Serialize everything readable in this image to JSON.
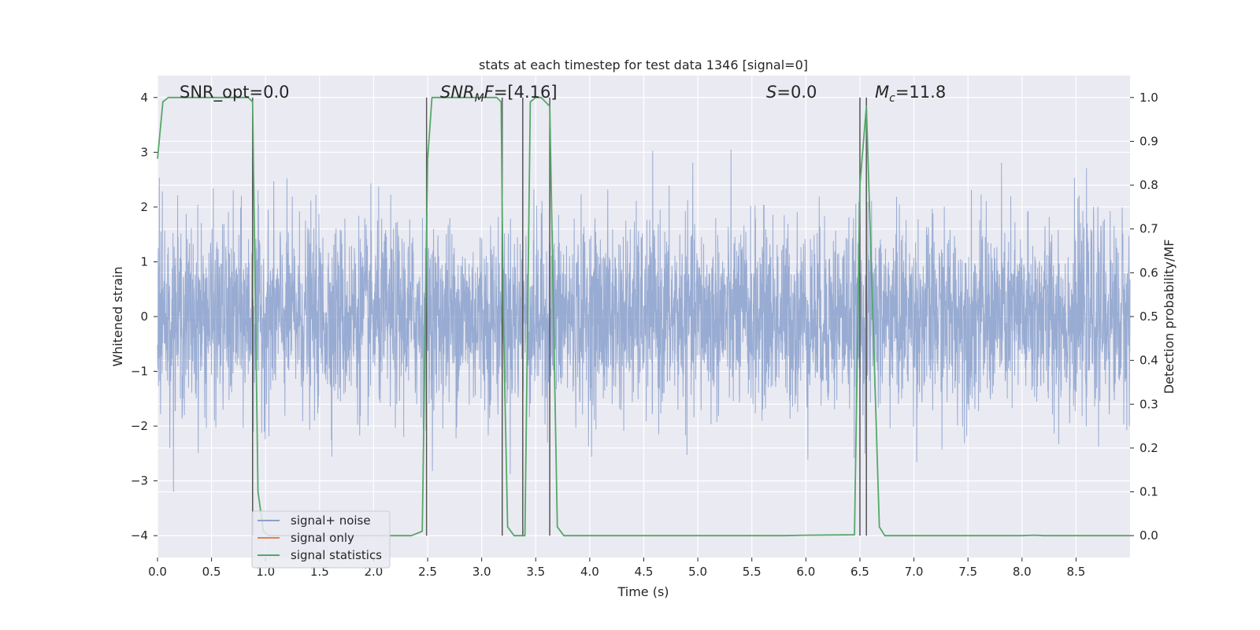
{
  "chart_data": {
    "type": "line",
    "title": "stats at each timestep for test data 1346 [signal=0]",
    "xlabel": "Time (s)",
    "ylabel_left": "Whitened strain",
    "ylabel_right": "Detection probability/MF",
    "xlim": [
      0.0,
      9.0
    ],
    "ylim_left": [
      -4.4,
      4.4
    ],
    "ylim_right": [
      -0.05,
      1.05
    ],
    "xticks": [
      "0.0",
      "0.5",
      "1.0",
      "1.5",
      "2.0",
      "2.5",
      "3.0",
      "3.5",
      "4.0",
      "4.5",
      "5.0",
      "5.5",
      "6.0",
      "6.5",
      "7.0",
      "7.5",
      "8.0",
      "8.5"
    ],
    "yticks_left": [
      "4",
      "3",
      "2",
      "1",
      "0",
      "−1",
      "−2",
      "−3",
      "−4"
    ],
    "yticks_right": [
      "1.0",
      "0.9",
      "0.8",
      "0.7",
      "0.6",
      "0.5",
      "0.4",
      "0.3",
      "0.2",
      "0.1",
      "0.0"
    ],
    "annotations": [
      {
        "text": "SNR_opt=0.0",
        "x": 0.2
      },
      {
        "text": "SNR_MF=[4.16]",
        "x": 2.6
      },
      {
        "text": "S=0.0",
        "x": 5.6
      },
      {
        "text": "M_c=11.8",
        "x": 6.6
      }
    ],
    "vertical_lines_x": [
      0.88,
      2.49,
      3.19,
      3.38,
      3.63,
      6.5,
      6.56
    ],
    "series": [
      {
        "name": "signal+ noise",
        "color": "#8aa0cc",
        "description": "whitened noise, amplitude roughly within [-2, 2] with spikes to about +/-3.6"
      },
      {
        "name": "signal only",
        "color": "#dd8452",
        "x": [],
        "y": []
      },
      {
        "name": "signal statistics",
        "color": "#55a868",
        "x": [
          0.0,
          0.05,
          0.1,
          0.84,
          0.88,
          0.93,
          0.98,
          1.03,
          2.35,
          2.45,
          2.5,
          2.54,
          2.6,
          3.14,
          3.18,
          3.2,
          3.24,
          3.3,
          3.34,
          3.4,
          3.45,
          3.5,
          3.55,
          3.63,
          3.7,
          3.76,
          5.8,
          6.0,
          6.45,
          6.5,
          6.56,
          6.62,
          6.68,
          6.73,
          8.0,
          8.12,
          8.2,
          9.0
        ],
        "y": [
          0.86,
          0.99,
          1.0,
          1.0,
          0.99,
          0.1,
          0.01,
          0.0,
          0.0,
          0.01,
          0.86,
          1.0,
          1.0,
          1.0,
          0.99,
          0.5,
          0.02,
          0.0,
          0.0,
          0.0,
          0.99,
          1.0,
          1.0,
          0.98,
          0.02,
          0.0,
          0.0,
          0.001,
          0.002,
          0.8,
          0.98,
          0.5,
          0.02,
          0.0,
          0.0,
          0.001,
          0.0,
          0.0
        ]
      }
    ],
    "legend": {
      "location": "lower-left",
      "entries": [
        "signal+ noise",
        "signal only",
        "signal statistics"
      ]
    },
    "colors": {
      "background": "#eaeaf2",
      "grid": "#ffffff",
      "vline": "#555555",
      "text": "#262626"
    }
  }
}
